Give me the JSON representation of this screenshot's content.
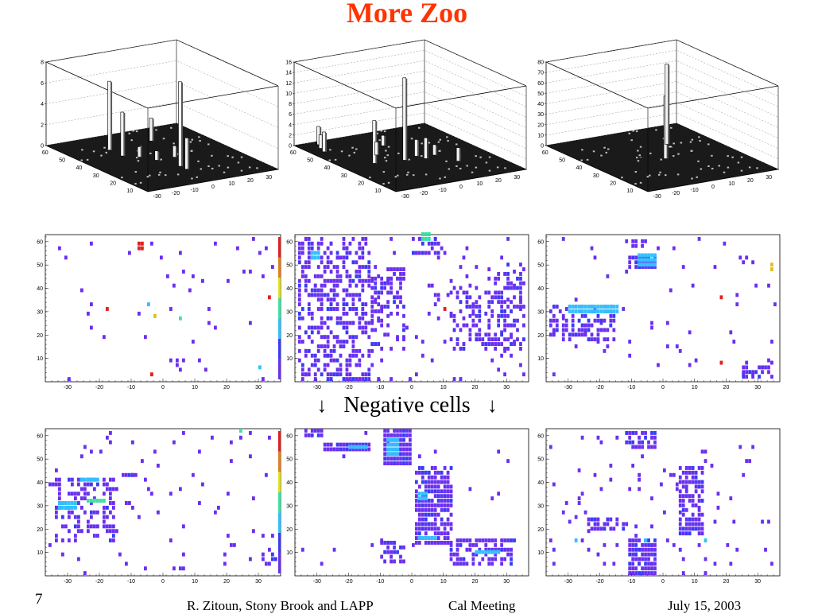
{
  "slide": {
    "title": "More Zoo",
    "title_color": "#ff3300",
    "page_number": "7",
    "footer_author": "R. Zitoun, Stony Brook and LAPP",
    "footer_meeting": "Cal Meeting",
    "footer_date": "July 15, 2003",
    "caption": "Negative cells",
    "arrow_glyph": "↓"
  },
  "chart_data": [
    {
      "type": "lego3d",
      "panel": "top-1",
      "zticks": [
        "0",
        "2",
        "4",
        "6",
        "8"
      ],
      "zlim": [
        0,
        8
      ],
      "xticks": [
        "-30",
        "-20",
        "-10",
        "0",
        "10",
        "20",
        "30"
      ],
      "yticks": [
        "10",
        "20",
        "30",
        "40",
        "50",
        "60"
      ],
      "towers": [
        {
          "x": -12,
          "y": 48,
          "z": 6.6
        },
        {
          "x": -12,
          "y": 40,
          "z": 4.2
        },
        {
          "x": 5,
          "y": 20,
          "z": 8.1
        },
        {
          "x": 5,
          "y": 16,
          "z": 3.0
        },
        {
          "x": 18,
          "y": 50,
          "z": 2.2
        },
        {
          "x": 12,
          "y": 30,
          "z": 1.1
        },
        {
          "x": -5,
          "y": 36,
          "z": 1.0
        },
        {
          "x": 0,
          "y": 30,
          "z": 0.9
        }
      ]
    },
    {
      "type": "lego3d",
      "panel": "top-2",
      "zticks": [
        "0",
        "2",
        "4",
        "6",
        "8",
        "10",
        "12",
        "14",
        "16"
      ],
      "zlim": [
        0,
        16
      ],
      "xticks": [
        "-30",
        "-20",
        "-10",
        "0",
        "10",
        "20",
        "30"
      ],
      "yticks": [
        "10",
        "20",
        "30",
        "40",
        "50",
        "60"
      ],
      "towers": [
        {
          "x": 0,
          "y": 30,
          "z": 15.8
        },
        {
          "x": -18,
          "y": 32,
          "z": 8.2
        },
        {
          "x": -25,
          "y": 60,
          "z": 3.5
        },
        {
          "x": -28,
          "y": 56,
          "z": 2.6
        },
        {
          "x": -30,
          "y": 52,
          "z": 3.8
        },
        {
          "x": 10,
          "y": 32,
          "z": 3.2
        },
        {
          "x": 12,
          "y": 28,
          "z": 4.0
        },
        {
          "x": 20,
          "y": 30,
          "z": 2.0
        },
        {
          "x": 25,
          "y": 20,
          "z": 2.6
        },
        {
          "x": -8,
          "y": 40,
          "z": 2.5
        },
        {
          "x": 5,
          "y": 48,
          "z": 2.0
        }
      ]
    },
    {
      "type": "lego3d",
      "panel": "top-3",
      "zticks": [
        "0",
        "10",
        "20",
        "30",
        "40",
        "50",
        "60",
        "70",
        "80"
      ],
      "zlim": [
        0,
        80
      ],
      "xticks": [
        "-30",
        "-20",
        "-10",
        "0",
        "10",
        "20",
        "30"
      ],
      "yticks": [
        "10",
        "20",
        "30",
        "40",
        "50",
        "60"
      ],
      "towers": [
        {
          "x": 6,
          "y": 30,
          "z": 60
        },
        {
          "x": 22,
          "y": 44,
          "z": 77
        },
        {
          "x": 20,
          "y": 40,
          "z": 2
        },
        {
          "x": -5,
          "y": 35,
          "z": 1
        }
      ]
    },
    {
      "type": "heatmap",
      "panel": "mid-1",
      "xticks": [
        "-30",
        "-20",
        "-10",
        "0",
        "10",
        "20",
        "30"
      ],
      "yticks": [
        "10",
        "20",
        "30",
        "40",
        "50",
        "60"
      ],
      "xlim": [
        -37,
        37
      ],
      "ylim": [
        0,
        63
      ],
      "seed": 11,
      "density": 0.02,
      "hot": [
        {
          "x": -8,
          "y": 57,
          "w": 2,
          "h": 2,
          "c": "#e02020"
        },
        {
          "x": -4,
          "y": 3,
          "w": 1,
          "h": 1,
          "c": "#e02020"
        },
        {
          "x": -18,
          "y": 31,
          "w": 1,
          "h": 1,
          "c": "#e02020"
        },
        {
          "x": -3,
          "y": 28,
          "w": 1,
          "h": 1,
          "c": "#e0c020"
        },
        {
          "x": 5,
          "y": 27,
          "w": 1,
          "h": 1,
          "c": "#40e0a0"
        },
        {
          "x": -5,
          "y": 33,
          "w": 1,
          "h": 1,
          "c": "#30c0ff"
        },
        {
          "x": 30,
          "y": 6,
          "w": 1,
          "h": 1,
          "c": "#30c0ff"
        },
        {
          "x": 33,
          "y": 36,
          "w": 1,
          "h": 1,
          "c": "#e02020"
        }
      ],
      "blocks": [],
      "colorbar": true
    },
    {
      "type": "heatmap",
      "panel": "mid-2",
      "xticks": [
        "-30",
        "-20",
        "-10",
        "0",
        "10",
        "20",
        "30"
      ],
      "yticks": [
        "10",
        "20",
        "30",
        "40",
        "50",
        "60"
      ],
      "xlim": [
        -37,
        37
      ],
      "ylim": [
        0,
        63
      ],
      "seed": 23,
      "density": 0.05,
      "hot": [
        {
          "x": -32,
          "y": 53,
          "w": 3,
          "h": 2,
          "c": "#30c0ff"
        },
        {
          "x": 10,
          "y": 31,
          "w": 1,
          "h": 1,
          "c": "#e02020"
        },
        {
          "x": 3,
          "y": 61,
          "w": 3,
          "h": 2,
          "c": "#30e0a0"
        }
      ],
      "blocks": [
        {
          "x0": -36,
          "x1": -14,
          "y0": 1,
          "y1": 62,
          "d": 0.42
        },
        {
          "x0": -13,
          "x1": -3,
          "y0": 14,
          "y1": 44,
          "d": 0.38
        },
        {
          "x0": 12,
          "x1": 35,
          "y0": 14,
          "y1": 40,
          "d": 0.36
        },
        {
          "x0": 24,
          "x1": 35,
          "y0": 40,
          "y1": 50,
          "d": 0.3
        },
        {
          "x0": 0,
          "x1": 10,
          "y0": 55,
          "y1": 62,
          "d": 0.35
        },
        {
          "x0": -8,
          "x1": -3,
          "y0": 44,
          "y1": 49,
          "d": 0.6
        }
      ]
    },
    {
      "type": "heatmap",
      "panel": "mid-3",
      "xticks": [
        "-30",
        "-20",
        "-10",
        "0",
        "10",
        "20",
        "30"
      ],
      "yticks": [
        "10",
        "20",
        "30",
        "40",
        "50",
        "60"
      ],
      "xlim": [
        -37,
        37
      ],
      "ylim": [
        0,
        63
      ],
      "seed": 37,
      "density": 0.025,
      "hot": [
        {
          "x": -30,
          "y": 30,
          "w": 16,
          "h": 2,
          "c": "#30c0ff"
        },
        {
          "x": -8,
          "y": 50,
          "w": 6,
          "h": 3,
          "c": "#30c0ff"
        },
        {
          "x": 18,
          "y": 36,
          "w": 1,
          "h": 1,
          "c": "#e02020"
        },
        {
          "x": 18,
          "y": 8,
          "w": 1,
          "h": 1,
          "c": "#e02020"
        },
        {
          "x": 34,
          "y": 48,
          "w": 1,
          "h": 2,
          "c": "#e0c020"
        }
      ],
      "blocks": [
        {
          "x0": -36,
          "x1": -16,
          "y0": 18,
          "y1": 32,
          "d": 0.45
        },
        {
          "x0": -11,
          "x1": -3,
          "y0": 49,
          "y1": 54,
          "d": 0.8
        },
        {
          "x0": -12,
          "x1": -6,
          "y0": 58,
          "y1": 60,
          "d": 0.7
        },
        {
          "x0": 25,
          "x1": 34,
          "y0": 2,
          "y1": 8,
          "d": 0.5
        }
      ]
    },
    {
      "type": "heatmap",
      "panel": "bot-1",
      "xticks": [
        "-30",
        "-20",
        "-10",
        "0",
        "10",
        "20",
        "30"
      ],
      "yticks": [
        "10",
        "20",
        "30",
        "40",
        "50",
        "60"
      ],
      "xlim": [
        -37,
        37
      ],
      "ylim": [
        0,
        63
      ],
      "seed": 41,
      "density": 0.03,
      "hot": [
        {
          "x": -33,
          "y": 29,
          "w": 6,
          "h": 2,
          "c": "#30c0ff"
        },
        {
          "x": -24,
          "y": 32,
          "w": 6,
          "h": 1,
          "c": "#40e0a0"
        },
        {
          "x": -26,
          "y": 41,
          "w": 6,
          "h": 1,
          "c": "#30c0ff"
        },
        {
          "x": 24,
          "y": 62,
          "w": 1,
          "h": 1,
          "c": "#40e0a0"
        }
      ],
      "blocks": [
        {
          "x0": -34,
          "x1": -15,
          "y0": 15,
          "y1": 42,
          "d": 0.42
        },
        {
          "x0": -14,
          "x1": -8,
          "y0": 43,
          "y1": 44,
          "d": 0.8
        },
        {
          "x0": 31,
          "x1": 35,
          "y0": 5,
          "y1": 12,
          "d": 0.4
        }
      ],
      "colorbar": true
    },
    {
      "type": "heatmap",
      "panel": "bot-2",
      "xticks": [
        "-30",
        "-20",
        "-10",
        "0",
        "10",
        "20",
        "30"
      ],
      "yticks": [
        "10",
        "20",
        "30",
        "40",
        "50",
        "60"
      ],
      "xlim": [
        -37,
        37
      ],
      "ylim": [
        0,
        63
      ],
      "seed": 53,
      "density": 0.012,
      "hot": [
        {
          "x": -20,
          "y": 55,
          "w": 6,
          "h": 1,
          "c": "#30c0ff"
        },
        {
          "x": -8,
          "y": 52,
          "w": 4,
          "h": 4,
          "c": "#30c0ff"
        },
        {
          "x": 2,
          "y": 33,
          "w": 3,
          "h": 2,
          "c": "#30c0ff"
        },
        {
          "x": 2,
          "y": 16,
          "w": 6,
          "h": 1,
          "c": "#30c0ff"
        },
        {
          "x": 20,
          "y": 10,
          "w": 8,
          "h": 1,
          "c": "#30c0ff"
        }
      ],
      "blocks": [
        {
          "x0": -9,
          "x1": -1,
          "y0": 48,
          "y1": 62,
          "d": 0.95
        },
        {
          "x0": -34,
          "x1": -29,
          "y0": 60,
          "y1": 62,
          "d": 0.8
        },
        {
          "x0": -28,
          "x1": -14,
          "y0": 54,
          "y1": 56,
          "d": 0.9
        },
        {
          "x0": 1,
          "x1": 12,
          "y0": 14,
          "y1": 47,
          "d": 0.7
        },
        {
          "x0": 12,
          "x1": 32,
          "y0": 5,
          "y1": 15,
          "d": 0.5
        },
        {
          "x0": -10,
          "x1": -3,
          "y0": 6,
          "y1": 14,
          "d": 0.5
        }
      ]
    },
    {
      "type": "heatmap",
      "panel": "bot-3",
      "xticks": [
        "-30",
        "-20",
        "-10",
        "0",
        "10",
        "20",
        "30"
      ],
      "yticks": [
        "10",
        "20",
        "30",
        "40",
        "50",
        "60"
      ],
      "xlim": [
        -37,
        37
      ],
      "ylim": [
        0,
        63
      ],
      "seed": 67,
      "density": 0.03,
      "hot": [
        {
          "x": -6,
          "y": 15,
          "w": 1,
          "h": 1,
          "c": "#30c0ff"
        },
        {
          "x": 13,
          "y": 15,
          "w": 1,
          "h": 1,
          "c": "#30c0ff"
        },
        {
          "x": -28,
          "y": 15,
          "w": 1,
          "h": 1,
          "c": "#30c0ff"
        }
      ],
      "blocks": [
        {
          "x0": -11,
          "x1": -3,
          "y0": 1,
          "y1": 15,
          "d": 0.85
        },
        {
          "x0": 5,
          "x1": 12,
          "y0": 18,
          "y1": 47,
          "d": 0.7
        },
        {
          "x0": -12,
          "x1": -3,
          "y0": 55,
          "y1": 61,
          "d": 0.6
        },
        {
          "x0": -24,
          "x1": -12,
          "y0": 20,
          "y1": 24,
          "d": 0.5
        }
      ]
    }
  ]
}
